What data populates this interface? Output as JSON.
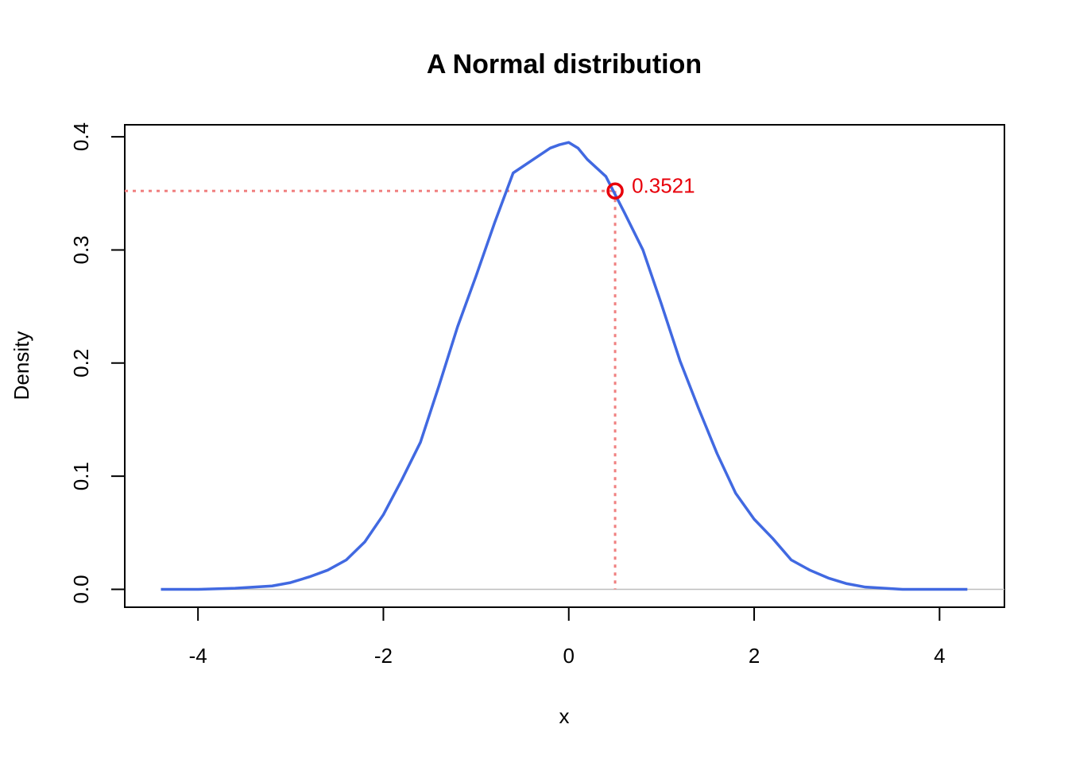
{
  "chart_data": {
    "type": "line",
    "title": "A Normal distribution",
    "xlabel": "x",
    "ylabel": "Density",
    "xlim": [
      -4.79,
      4.7
    ],
    "ylim": [
      -0.0158,
      0.4106
    ],
    "x_ticks": [
      -4,
      -2,
      0,
      2,
      4
    ],
    "x_tick_labels": [
      "-4",
      "-2",
      "0",
      "2",
      "4"
    ],
    "y_ticks": [
      0.0,
      0.1,
      0.2,
      0.3,
      0.4
    ],
    "y_tick_labels": [
      "0.0",
      "0.1",
      "0.2",
      "0.3",
      "0.4"
    ],
    "grid": false,
    "baseline": 0,
    "series": [
      {
        "color": "#4169e1",
        "x": [
          -4.4,
          -4.0,
          -3.6,
          -3.2,
          -3.0,
          -2.8,
          -2.6,
          -2.4,
          -2.2,
          -2.0,
          -1.8,
          -1.6,
          -1.4,
          -1.2,
          -1.0,
          -0.8,
          -0.6,
          -0.4,
          -0.2,
          -0.1,
          0.0,
          0.1,
          0.2,
          0.4,
          0.6,
          0.8,
          1.0,
          1.2,
          1.4,
          1.6,
          1.8,
          2.0,
          2.2,
          2.4,
          2.6,
          2.8,
          3.0,
          3.2,
          3.6,
          4.0,
          4.3
        ],
        "y": [
          0.0,
          0.0,
          0.001,
          0.003,
          0.006,
          0.011,
          0.017,
          0.026,
          0.042,
          0.066,
          0.097,
          0.13,
          0.18,
          0.232,
          0.277,
          0.324,
          0.368,
          0.379,
          0.39,
          0.393,
          0.395,
          0.39,
          0.38,
          0.365,
          0.333,
          0.3,
          0.252,
          0.202,
          0.16,
          0.12,
          0.085,
          0.062,
          0.045,
          0.026,
          0.017,
          0.01,
          0.005,
          0.002,
          0.0,
          0.0,
          0.0
        ]
      }
    ],
    "highlight": {
      "x": 0.5,
      "y": 0.3521,
      "label": "0.3521",
      "color": "#e8000b",
      "guide_color": "#f08080"
    },
    "colors": {
      "curve": "#4169e1",
      "baseline": "#bebebe",
      "axes": "#000000"
    }
  }
}
